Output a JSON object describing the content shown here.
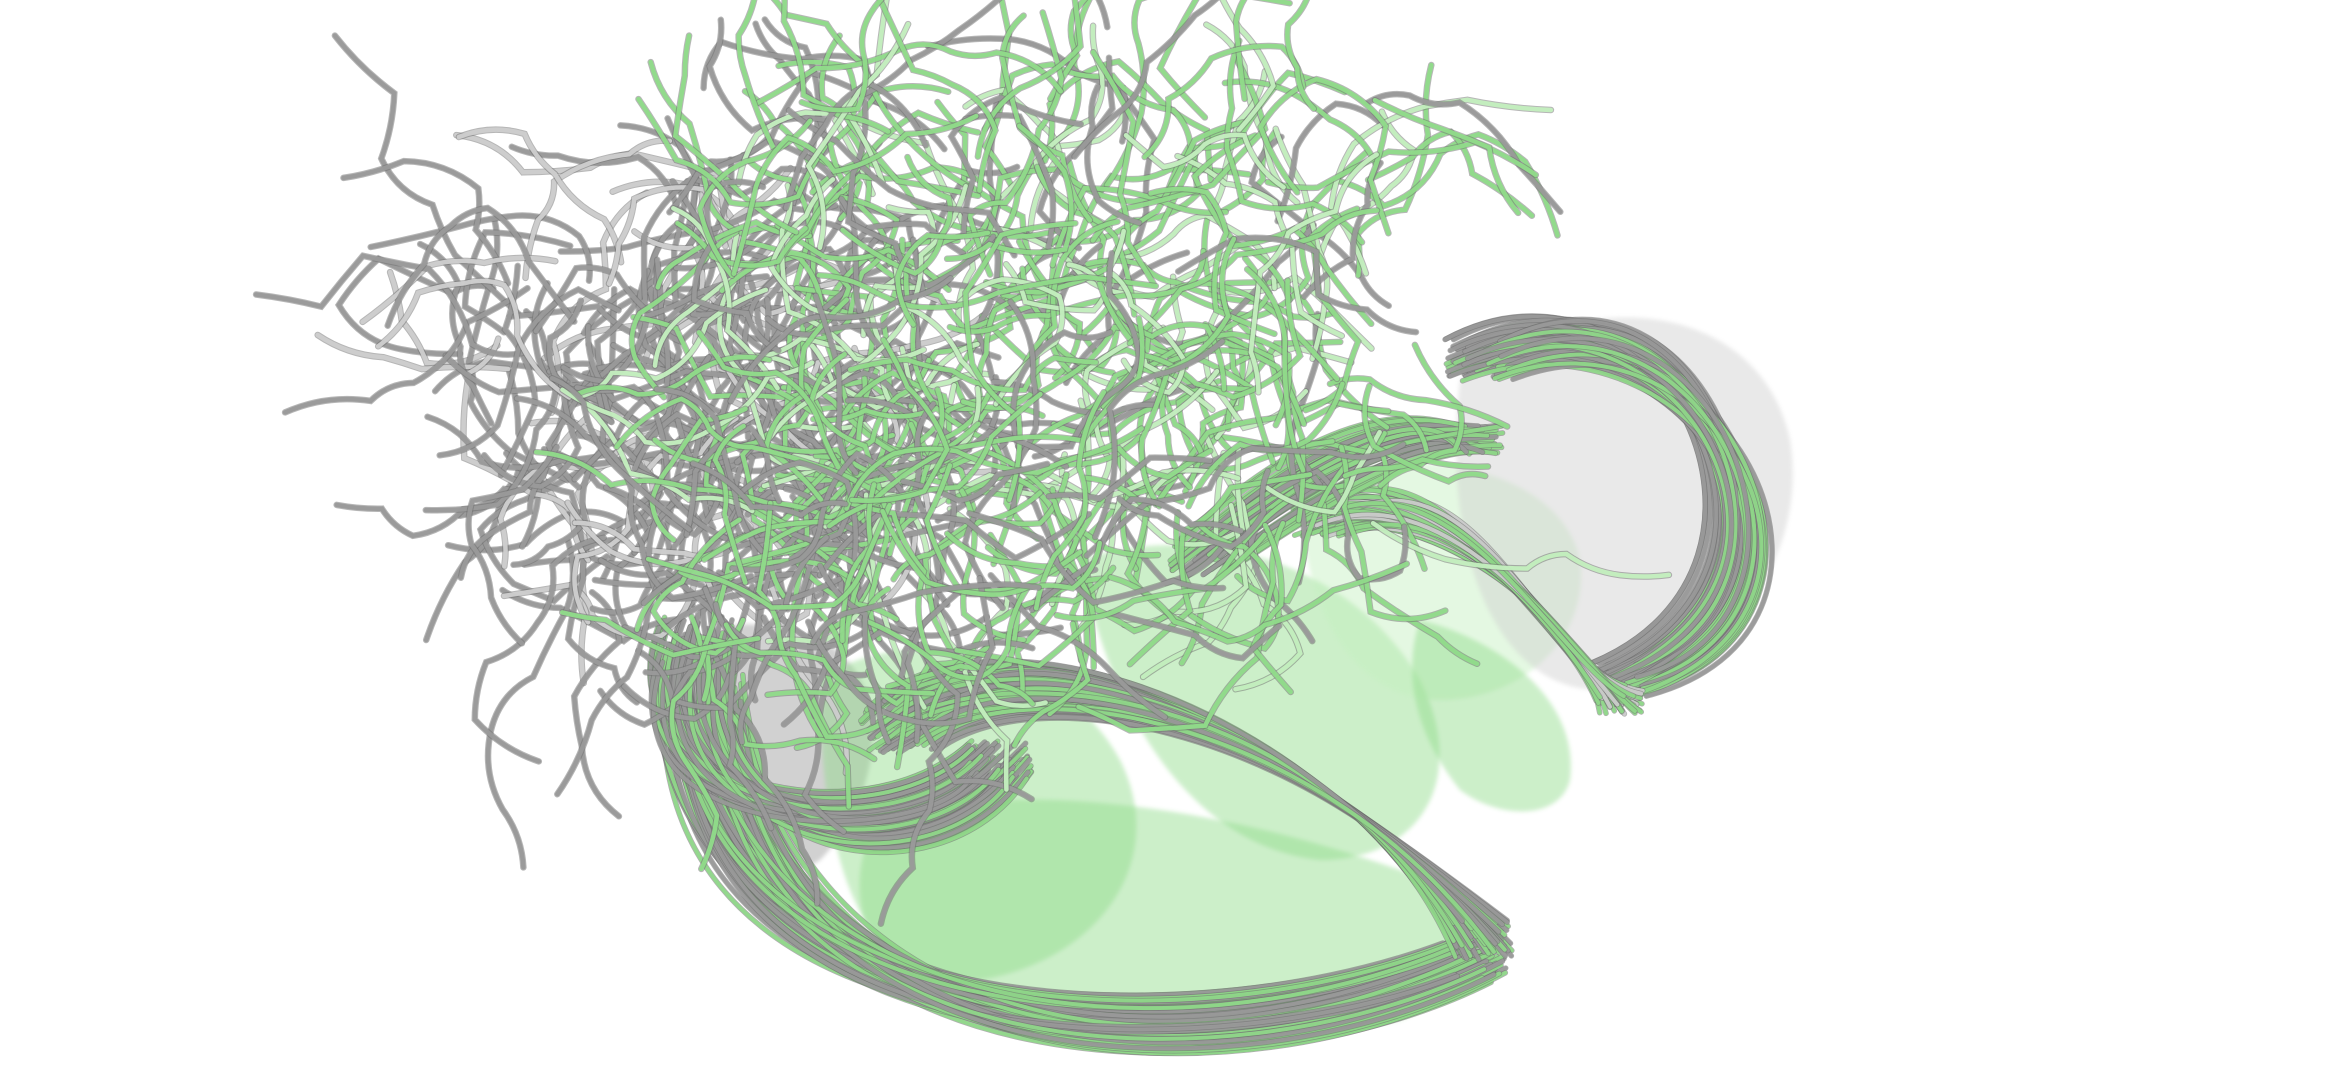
{
  "scene": {
    "background": "#ffffff",
    "colors": {
      "green": "#90dc8a",
      "green_dark": "#5fa85a",
      "green_light": "#c4f0bf",
      "gray": "#9a9a9a",
      "gray_dark": "#6e6e6e",
      "gray_light": "#cfcfcf"
    },
    "ensemble": {
      "states": [
        "green-ensemble",
        "gray-ensemble"
      ]
    }
  }
}
